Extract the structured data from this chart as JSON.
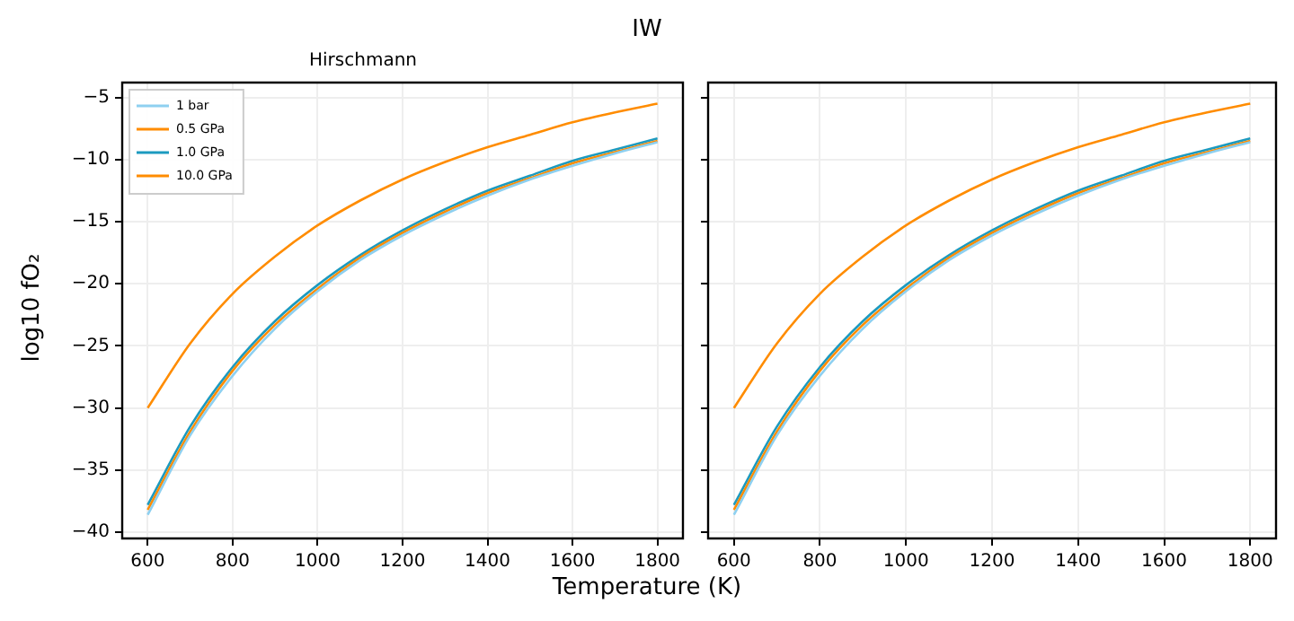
{
  "chart_data": [
    {
      "type": "line",
      "title": "Hirschmann",
      "annotations": [
        "IW"
      ],
      "xlabel": "Temperature (K)",
      "ylabel": "log10 fO₂",
      "x": [
        600,
        700,
        800,
        900,
        1000,
        1100,
        1200,
        1300,
        1400,
        1500,
        1600,
        1700,
        1800
      ],
      "series": [
        {
          "name": "1 bar",
          "color": "#8ed0f0",
          "values": [
            -38.6,
            -32.2,
            -27.4,
            -23.6,
            -20.6,
            -18.1,
            -16.1,
            -14.4,
            -12.9,
            -11.6,
            -10.5,
            -9.5,
            -8.6
          ]
        },
        {
          "name": "0.5 GPa",
          "color": "#ff8c00",
          "values": [
            -38.2,
            -31.9,
            -27.0,
            -23.3,
            -20.4,
            -17.9,
            -15.9,
            -14.2,
            -12.7,
            -11.5,
            -10.3,
            -9.4,
            -8.5
          ]
        },
        {
          "name": "1.0 GPa",
          "color": "#1c9abf",
          "values": [
            -37.8,
            -31.5,
            -26.7,
            -23.0,
            -20.1,
            -17.7,
            -15.7,
            -14.0,
            -12.5,
            -11.3,
            -10.1,
            -9.2,
            -8.3
          ]
        },
        {
          "name": "10.0 GPa",
          "color": "#ff8c00",
          "values": [
            -30.0,
            -24.8,
            -20.8,
            -17.8,
            -15.3,
            -13.3,
            -11.6,
            -10.2,
            -9.0,
            -8.0,
            -7.0,
            -6.2,
            -5.5
          ]
        }
      ],
      "xlim": [
        540,
        1860
      ],
      "xticks": [
        600,
        800,
        1000,
        1200,
        1400,
        1600,
        1800
      ],
      "ylim": [
        -40.5,
        -3.8
      ],
      "yticks": [
        -40,
        -35,
        -30,
        -25,
        -20,
        -15,
        -10,
        -5
      ],
      "grid": true,
      "legend": "top left"
    },
    {
      "type": "line",
      "x": [
        600,
        700,
        800,
        900,
        1000,
        1100,
        1200,
        1300,
        1400,
        1500,
        1600,
        1700,
        1800
      ],
      "series": [
        {
          "color": "#8ed0f0",
          "values": [
            -38.6,
            -32.2,
            -27.4,
            -23.6,
            -20.6,
            -18.1,
            -16.1,
            -14.4,
            -12.9,
            -11.6,
            -10.5,
            -9.5,
            -8.6
          ]
        },
        {
          "color": "#ff8c00",
          "values": [
            -38.2,
            -31.9,
            -27.0,
            -23.3,
            -20.4,
            -17.9,
            -15.9,
            -14.2,
            -12.7,
            -11.5,
            -10.3,
            -9.4,
            -8.5
          ]
        },
        {
          "color": "#1c9abf",
          "values": [
            -37.8,
            -31.5,
            -26.7,
            -23.0,
            -20.1,
            -17.7,
            -15.7,
            -14.0,
            -12.5,
            -11.3,
            -10.1,
            -9.2,
            -8.3
          ]
        },
        {
          "color": "#ff8c00",
          "values": [
            -30.0,
            -24.8,
            -20.8,
            -17.8,
            -15.3,
            -13.3,
            -11.6,
            -10.2,
            -9.0,
            -8.0,
            -7.0,
            -6.2,
            -5.5
          ]
        }
      ],
      "xlim": [
        540,
        1860
      ],
      "xticks": [
        600,
        800,
        1000,
        1200,
        1400,
        1600,
        1800
      ],
      "ylim": [
        -40.5,
        -3.8
      ],
      "yticks": [
        -40,
        -35,
        -30,
        -25,
        -20,
        -15,
        -10,
        -5
      ],
      "grid": true,
      "tick_labels": "x"
    }
  ]
}
